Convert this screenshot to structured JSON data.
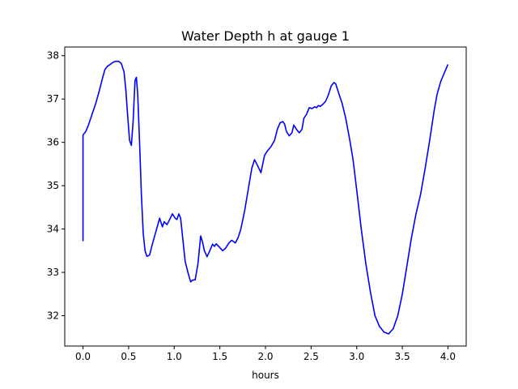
{
  "chart_data": {
    "type": "line",
    "title": "Water Depth h at gauge 1",
    "xlabel": "hours",
    "ylabel": "",
    "xlim": [
      -0.2,
      4.2
    ],
    "ylim": [
      31.3,
      38.2
    ],
    "xticks": [
      0.0,
      0.5,
      1.0,
      1.5,
      2.0,
      2.5,
      3.0,
      3.5,
      4.0
    ],
    "xtick_labels": [
      "0.0",
      "0.5",
      "1.0",
      "1.5",
      "2.0",
      "2.5",
      "3.0",
      "3.5",
      "4.0"
    ],
    "yticks": [
      32,
      33,
      34,
      35,
      36,
      37,
      38
    ],
    "ytick_labels": [
      "32",
      "33",
      "34",
      "35",
      "36",
      "37",
      "38"
    ],
    "grid": false,
    "legend": "none",
    "series": [
      {
        "color": "#0000ff",
        "points": [
          [
            0.0,
            33.72
          ],
          [
            0.0,
            36.17
          ],
          [
            0.03,
            36.25
          ],
          [
            0.06,
            36.4
          ],
          [
            0.1,
            36.65
          ],
          [
            0.14,
            36.9
          ],
          [
            0.18,
            37.2
          ],
          [
            0.21,
            37.45
          ],
          [
            0.24,
            37.68
          ],
          [
            0.27,
            37.76
          ],
          [
            0.3,
            37.8
          ],
          [
            0.33,
            37.85
          ],
          [
            0.36,
            37.87
          ],
          [
            0.39,
            37.87
          ],
          [
            0.42,
            37.82
          ],
          [
            0.45,
            37.62
          ],
          [
            0.47,
            37.2
          ],
          [
            0.49,
            36.6
          ],
          [
            0.51,
            36.05
          ],
          [
            0.53,
            35.93
          ],
          [
            0.55,
            36.5
          ],
          [
            0.57,
            37.42
          ],
          [
            0.585,
            37.5
          ],
          [
            0.6,
            37.1
          ],
          [
            0.62,
            36.0
          ],
          [
            0.64,
            34.8
          ],
          [
            0.66,
            33.9
          ],
          [
            0.68,
            33.5
          ],
          [
            0.7,
            33.37
          ],
          [
            0.73,
            33.4
          ],
          [
            0.76,
            33.65
          ],
          [
            0.8,
            33.95
          ],
          [
            0.84,
            34.25
          ],
          [
            0.87,
            34.05
          ],
          [
            0.89,
            34.17
          ],
          [
            0.92,
            34.1
          ],
          [
            0.95,
            34.22
          ],
          [
            0.98,
            34.35
          ],
          [
            1.01,
            34.25
          ],
          [
            1.03,
            34.22
          ],
          [
            1.05,
            34.35
          ],
          [
            1.07,
            34.25
          ],
          [
            1.09,
            33.85
          ],
          [
            1.12,
            33.25
          ],
          [
            1.15,
            33.0
          ],
          [
            1.18,
            32.78
          ],
          [
            1.2,
            32.82
          ],
          [
            1.23,
            32.83
          ],
          [
            1.26,
            33.2
          ],
          [
            1.29,
            33.84
          ],
          [
            1.31,
            33.7
          ],
          [
            1.33,
            33.5
          ],
          [
            1.36,
            33.36
          ],
          [
            1.39,
            33.5
          ],
          [
            1.42,
            33.65
          ],
          [
            1.44,
            33.6
          ],
          [
            1.46,
            33.66
          ],
          [
            1.5,
            33.57
          ],
          [
            1.53,
            33.5
          ],
          [
            1.56,
            33.55
          ],
          [
            1.6,
            33.68
          ],
          [
            1.63,
            33.74
          ],
          [
            1.67,
            33.68
          ],
          [
            1.7,
            33.8
          ],
          [
            1.73,
            34.0
          ],
          [
            1.77,
            34.4
          ],
          [
            1.81,
            34.9
          ],
          [
            1.85,
            35.4
          ],
          [
            1.88,
            35.6
          ],
          [
            1.91,
            35.48
          ],
          [
            1.95,
            35.3
          ],
          [
            1.99,
            35.7
          ],
          [
            2.02,
            35.8
          ],
          [
            2.06,
            35.9
          ],
          [
            2.1,
            36.05
          ],
          [
            2.13,
            36.3
          ],
          [
            2.16,
            36.45
          ],
          [
            2.19,
            36.48
          ],
          [
            2.21,
            36.42
          ],
          [
            2.23,
            36.25
          ],
          [
            2.26,
            36.15
          ],
          [
            2.29,
            36.22
          ],
          [
            2.31,
            36.4
          ],
          [
            2.34,
            36.3
          ],
          [
            2.37,
            36.22
          ],
          [
            2.4,
            36.3
          ],
          [
            2.42,
            36.55
          ],
          [
            2.45,
            36.65
          ],
          [
            2.48,
            36.8
          ],
          [
            2.51,
            36.78
          ],
          [
            2.54,
            36.82
          ],
          [
            2.56,
            36.8
          ],
          [
            2.58,
            36.85
          ],
          [
            2.6,
            36.83
          ],
          [
            2.63,
            36.88
          ],
          [
            2.66,
            36.95
          ],
          [
            2.69,
            37.1
          ],
          [
            2.72,
            37.3
          ],
          [
            2.75,
            37.38
          ],
          [
            2.77,
            37.35
          ],
          [
            2.8,
            37.15
          ],
          [
            2.84,
            36.9
          ],
          [
            2.88,
            36.55
          ],
          [
            2.92,
            36.1
          ],
          [
            2.96,
            35.6
          ],
          [
            3.0,
            34.9
          ],
          [
            3.05,
            34.0
          ],
          [
            3.1,
            33.2
          ],
          [
            3.15,
            32.55
          ],
          [
            3.2,
            32.0
          ],
          [
            3.25,
            31.75
          ],
          [
            3.3,
            31.62
          ],
          [
            3.35,
            31.58
          ],
          [
            3.4,
            31.7
          ],
          [
            3.45,
            32.0
          ],
          [
            3.5,
            32.5
          ],
          [
            3.55,
            33.15
          ],
          [
            3.6,
            33.8
          ],
          [
            3.65,
            34.35
          ],
          [
            3.7,
            34.8
          ],
          [
            3.75,
            35.4
          ],
          [
            3.8,
            36.05
          ],
          [
            3.85,
            36.75
          ],
          [
            3.88,
            37.1
          ],
          [
            3.92,
            37.4
          ],
          [
            3.96,
            37.6
          ],
          [
            4.0,
            37.8
          ]
        ]
      }
    ]
  }
}
